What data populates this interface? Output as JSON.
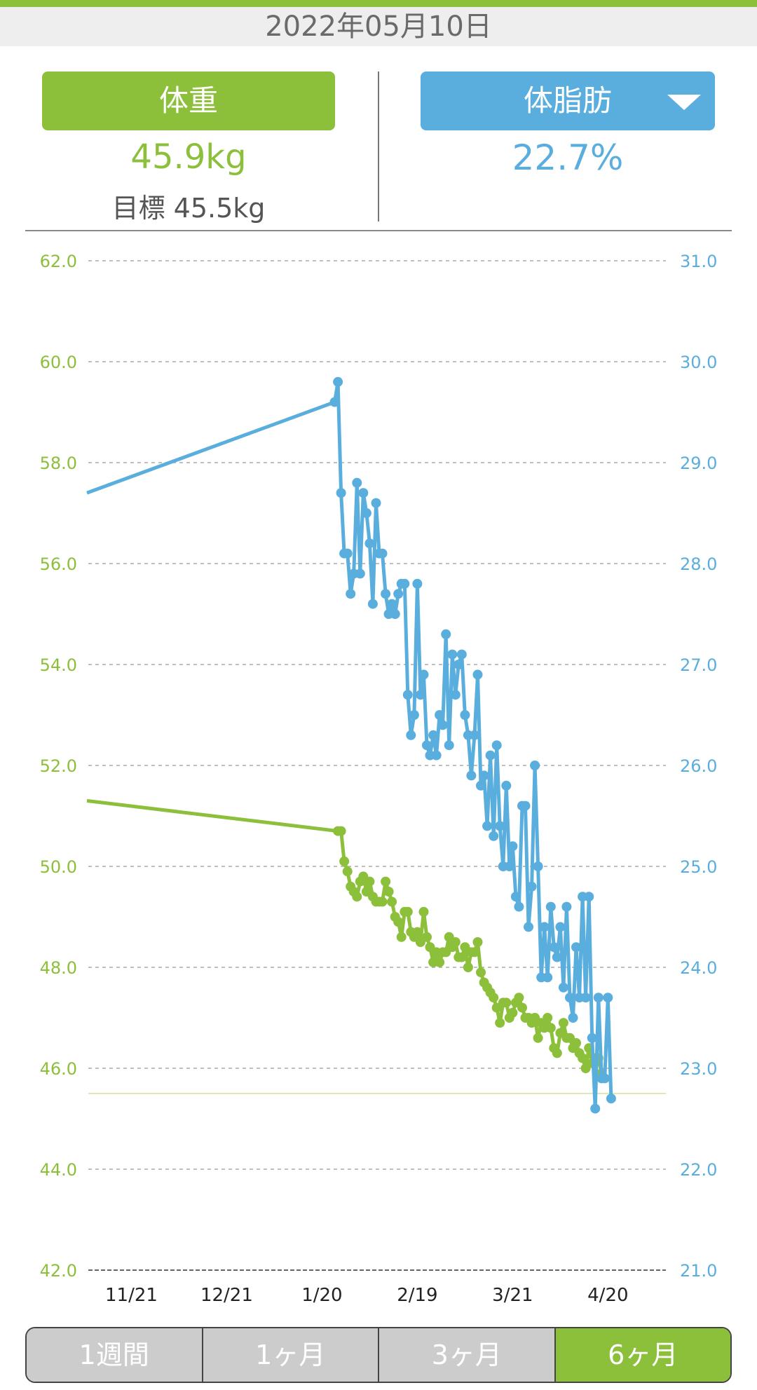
{
  "header": {
    "date": "2022年05月10日"
  },
  "weight_panel": {
    "button_label": "体重",
    "value": "45.9kg",
    "goal_label": "目標",
    "goal_value": "45.5kg"
  },
  "fat_panel": {
    "button_label": "体脂肪",
    "value": "22.7%",
    "dropdown_icon": "triangle-down-icon"
  },
  "range_tabs": [
    {
      "label": "1週間",
      "active": false
    },
    {
      "label": "1ヶ月",
      "active": false
    },
    {
      "label": "3ヶ月",
      "active": false
    },
    {
      "label": "6ヶ月",
      "active": true
    }
  ],
  "colors": {
    "weight": "#8cbf3a",
    "fat": "#5aaedd",
    "goal_line": "#dbe9b4"
  },
  "chart_data": {
    "type": "line",
    "x_tick_labels": [
      "11/21",
      "12/21",
      "1/20",
      "2/19",
      "3/21",
      "4/20"
    ],
    "x_tick_days": [
      0,
      30,
      60,
      90,
      120,
      150
    ],
    "xlim": [
      -14,
      170
    ],
    "y_left": {
      "min": 42,
      "max": 62,
      "ticks": [
        "62.0",
        "60.0",
        "58.0",
        "56.0",
        "54.0",
        "52.0",
        "50.0",
        "48.0",
        "46.0",
        "44.0",
        "42.0"
      ]
    },
    "y_right": {
      "min": 21,
      "max": 31,
      "ticks": [
        "31.0",
        "30.0",
        "29.0",
        "28.0",
        "27.0",
        "26.0",
        "25.0",
        "24.0",
        "23.0",
        "22.0",
        "21.0"
      ]
    },
    "goal": 45.5,
    "grid": true,
    "series": [
      {
        "key": "weight",
        "axis": "left",
        "points": [
          [
            -14,
            51.3
          ],
          [
            65,
            50.7
          ],
          [
            66,
            50.7
          ],
          [
            67,
            50.1
          ],
          [
            68,
            49.9
          ],
          [
            69,
            49.6
          ],
          [
            70,
            49.5
          ],
          [
            71,
            49.4
          ],
          [
            72,
            49.7
          ],
          [
            73,
            49.8
          ],
          [
            74,
            49.5
          ],
          [
            75,
            49.7
          ],
          [
            76,
            49.4
          ],
          [
            77,
            49.3
          ],
          [
            78,
            49.3
          ],
          [
            79,
            49.3
          ],
          [
            80,
            49.7
          ],
          [
            81,
            49.5
          ],
          [
            82,
            49.3
          ],
          [
            83,
            49.0
          ],
          [
            84,
            48.9
          ],
          [
            85,
            48.6
          ],
          [
            86,
            49.1
          ],
          [
            87,
            49.1
          ],
          [
            88,
            48.7
          ],
          [
            89,
            48.6
          ],
          [
            90,
            48.7
          ],
          [
            91,
            48.5
          ],
          [
            92,
            49.1
          ],
          [
            93,
            48.6
          ],
          [
            94,
            48.4
          ],
          [
            95,
            48.1
          ],
          [
            96,
            48.3
          ],
          [
            97,
            48.1
          ],
          [
            98,
            48.3
          ],
          [
            99,
            48.3
          ],
          [
            100,
            48.6
          ],
          [
            101,
            48.4
          ],
          [
            102,
            48.5
          ],
          [
            103,
            48.2
          ],
          [
            104,
            48.2
          ],
          [
            105,
            48.4
          ],
          [
            106,
            48.0
          ],
          [
            107,
            48.3
          ],
          [
            108,
            48.3
          ],
          [
            109,
            48.5
          ],
          [
            110,
            47.9
          ],
          [
            111,
            47.7
          ],
          [
            112,
            47.6
          ],
          [
            113,
            47.5
          ],
          [
            114,
            47.4
          ],
          [
            115,
            47.2
          ],
          [
            116,
            46.9
          ],
          [
            117,
            47.3
          ],
          [
            118,
            47.3
          ],
          [
            119,
            47.0
          ],
          [
            120,
            47.1
          ],
          [
            121,
            47.3
          ],
          [
            122,
            47.4
          ],
          [
            123,
            47.2
          ],
          [
            124,
            47.0
          ],
          [
            125,
            47.0
          ],
          [
            126,
            46.9
          ],
          [
            127,
            47.0
          ],
          [
            128,
            46.6
          ],
          [
            129,
            46.9
          ],
          [
            130,
            46.8
          ],
          [
            131,
            47.0
          ],
          [
            132,
            46.8
          ],
          [
            133,
            46.4
          ],
          [
            134,
            46.3
          ],
          [
            135,
            46.7
          ],
          [
            136,
            46.9
          ],
          [
            137,
            46.6
          ],
          [
            138,
            46.6
          ],
          [
            139,
            46.4
          ],
          [
            140,
            46.5
          ],
          [
            141,
            46.3
          ],
          [
            142,
            46.2
          ],
          [
            143,
            46.0
          ],
          [
            144,
            46.4
          ],
          [
            145,
            46.1
          ],
          [
            146,
            46.2
          ],
          [
            147,
            46.2
          ],
          [
            148,
            45.9
          ]
        ]
      },
      {
        "key": "fat",
        "axis": "right",
        "points": [
          [
            -14,
            28.7
          ],
          [
            64,
            29.6
          ],
          [
            65,
            29.8
          ],
          [
            66,
            28.7
          ],
          [
            67,
            28.1
          ],
          [
            68,
            28.1
          ],
          [
            69,
            27.7
          ],
          [
            70,
            27.9
          ],
          [
            71,
            28.8
          ],
          [
            72,
            27.9
          ],
          [
            73,
            28.7
          ],
          [
            74,
            28.5
          ],
          [
            75,
            28.2
          ],
          [
            76,
            27.6
          ],
          [
            77,
            28.6
          ],
          [
            78,
            28.1
          ],
          [
            79,
            28.1
          ],
          [
            80,
            27.7
          ],
          [
            81,
            27.5
          ],
          [
            82,
            27.6
          ],
          [
            83,
            27.5
          ],
          [
            84,
            27.7
          ],
          [
            85,
            27.8
          ],
          [
            86,
            27.8
          ],
          [
            87,
            26.7
          ],
          [
            88,
            26.3
          ],
          [
            89,
            26.5
          ],
          [
            90,
            27.8
          ],
          [
            91,
            26.7
          ],
          [
            92,
            26.9
          ],
          [
            93,
            26.2
          ],
          [
            94,
            26.1
          ],
          [
            95,
            26.3
          ],
          [
            96,
            26.1
          ],
          [
            97,
            26.5
          ],
          [
            98,
            26.4
          ],
          [
            99,
            27.3
          ],
          [
            100,
            26.2
          ],
          [
            101,
            27.1
          ],
          [
            102,
            26.7
          ],
          [
            103,
            27.0
          ],
          [
            104,
            27.1
          ],
          [
            105,
            26.5
          ],
          [
            106,
            26.3
          ],
          [
            107,
            25.9
          ],
          [
            108,
            26.3
          ],
          [
            109,
            26.9
          ],
          [
            110,
            25.8
          ],
          [
            111,
            25.9
          ],
          [
            112,
            25.4
          ],
          [
            113,
            26.1
          ],
          [
            114,
            25.3
          ],
          [
            115,
            26.2
          ],
          [
            116,
            25.4
          ],
          [
            117,
            25.0
          ],
          [
            118,
            25.8
          ],
          [
            119,
            25.0
          ],
          [
            120,
            25.2
          ],
          [
            121,
            24.7
          ],
          [
            122,
            24.6
          ],
          [
            123,
            25.6
          ],
          [
            124,
            25.6
          ],
          [
            125,
            24.4
          ],
          [
            126,
            24.8
          ],
          [
            127,
            26.0
          ],
          [
            128,
            25.0
          ],
          [
            129,
            23.9
          ],
          [
            130,
            24.4
          ],
          [
            131,
            23.9
          ],
          [
            132,
            24.6
          ],
          [
            133,
            24.2
          ],
          [
            134,
            24.1
          ],
          [
            135,
            24.4
          ],
          [
            136,
            23.8
          ],
          [
            137,
            24.6
          ],
          [
            138,
            23.7
          ],
          [
            139,
            23.5
          ],
          [
            140,
            24.2
          ],
          [
            141,
            23.7
          ],
          [
            142,
            24.7
          ],
          [
            143,
            23.7
          ],
          [
            144,
            24.7
          ],
          [
            145,
            23.3
          ],
          [
            146,
            22.6
          ],
          [
            147,
            23.7
          ],
          [
            148,
            22.9
          ],
          [
            149,
            22.9
          ],
          [
            150,
            23.7
          ],
          [
            151,
            22.7
          ]
        ]
      }
    ]
  }
}
